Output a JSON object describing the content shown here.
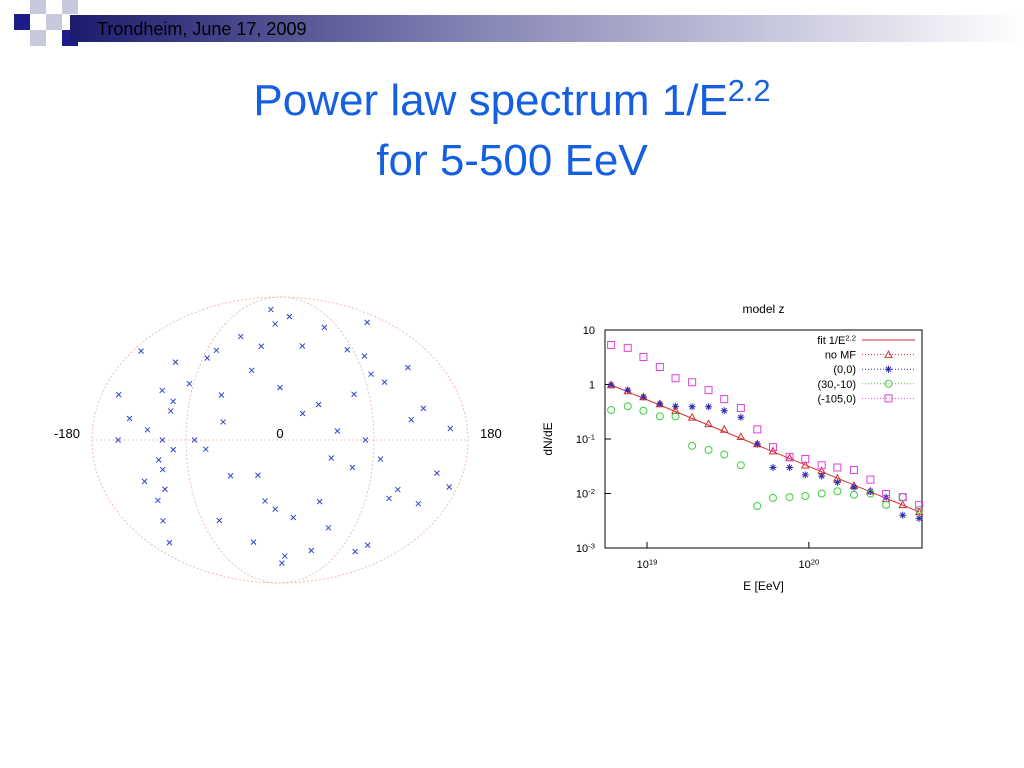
{
  "header": {
    "text": "Trondheim, June 17, 2009"
  },
  "title": {
    "line1": "Power law spectrum 1/E^2.2",
    "line2": "for  5-500 EeV"
  },
  "chart_data": [
    {
      "type": "scatter",
      "marker": "x",
      "color": "#3344cc",
      "xlim": [
        -180,
        180
      ],
      "ylim": [
        -90,
        90
      ],
      "xticks": [
        -180,
        0,
        180
      ],
      "x": [
        -120,
        -110,
        -100,
        -130,
        -115,
        -105,
        -95,
        -140,
        -90,
        -125,
        -108,
        -118,
        -135,
        -100,
        -112,
        -150,
        -160,
        -80,
        -70,
        -60,
        -50,
        -40,
        -30,
        -20,
        -10,
        0,
        10,
        20,
        30,
        40,
        50,
        60,
        70,
        80,
        90,
        100,
        110,
        120,
        130,
        140,
        150,
        160,
        -45,
        -25,
        15,
        35,
        55,
        75,
        95,
        115,
        135,
        -65,
        -85,
        -5,
        25,
        65,
        105,
        145,
        -155,
        -170,
        170,
        5,
        -35,
        45,
        85,
        125,
        -75,
        -55,
        -15,
        155
      ],
      "y": [
        5,
        -10,
        15,
        -20,
        25,
        0,
        -5,
        10,
        30,
        -30,
        -15,
        40,
        -40,
        20,
        -25,
        0,
        20,
        50,
        -45,
        60,
        10,
        -60,
        40,
        -20,
        70,
        30,
        -70,
        15,
        55,
        -35,
        5,
        -50,
        25,
        65,
        -10,
        45,
        -30,
        10,
        -55,
        35,
        -15,
        5,
        -20,
        55,
        -45,
        20,
        -65,
        0,
        35,
        -25,
        15,
        -5,
        45,
        -40,
        75,
        -15,
        30,
        -30,
        -50,
        40,
        -20,
        -75,
        80,
        -10,
        50,
        -60,
        0,
        25,
        -35,
        60
      ]
    },
    {
      "type": "loglog",
      "title": "model z",
      "xlabel": "E [EeV]",
      "ylabel": "dN/dE",
      "xscale": "log",
      "yscale": "log",
      "legend": "upper right",
      "xlim": [
        5.5e+18,
        5e+20
      ],
      "ylim": [
        0.001,
        10
      ],
      "xticks": [
        {
          "value": 1e+19,
          "label": "10^19"
        },
        {
          "value": 1e+20,
          "label": "10^20"
        }
      ],
      "yticks": [
        {
          "value": 0.001,
          "label": "10^-3"
        },
        {
          "value": 0.01,
          "label": "10^-2"
        },
        {
          "value": 0.1,
          "label": "10^-1"
        },
        1,
        10
      ],
      "series": [
        {
          "name": "fit 1/E^2.2",
          "color": "#d03030",
          "marker": "line",
          "x": [
            6e+18,
            4.8e+20
          ],
          "values": [
            0.98,
            0.0046
          ]
        },
        {
          "name": "no MF",
          "color": "#d03030",
          "marker": "triangle",
          "x": [
            6e+18,
            7.6e+18,
            9.5e+18,
            1.2e+19,
            1.5e+19,
            1.9e+19,
            2.4e+19,
            3e+19,
            3.8e+19,
            4.8e+19,
            6e+19,
            7.6e+19,
            9.5e+19,
            1.2e+20,
            1.5e+20,
            1.9e+20,
            2.4e+20,
            3e+20,
            3.8e+20,
            4.8e+20
          ],
          "values": [
            0.98,
            0.76,
            0.59,
            0.44,
            0.33,
            0.25,
            0.19,
            0.15,
            0.11,
            0.081,
            0.06,
            0.045,
            0.033,
            0.026,
            0.019,
            0.014,
            0.011,
            0.008,
            0.0062,
            0.0046
          ]
        },
        {
          "name": "(0,0)",
          "color": "#2b2bb0",
          "marker": "star",
          "x": [
            6e+18,
            7.6e+18,
            9.5e+18,
            1.2e+19,
            1.5e+19,
            1.9e+19,
            2.4e+19,
            3e+19,
            3.8e+19,
            4.8e+19,
            6e+19,
            7.6e+19,
            9.5e+19,
            1.2e+20,
            1.5e+20,
            1.9e+20,
            2.4e+20,
            3e+20,
            3.8e+20,
            4.8e+20
          ],
          "values": [
            0.98,
            0.79,
            0.59,
            0.44,
            0.4,
            0.39,
            0.39,
            0.33,
            0.25,
            0.081,
            0.03,
            0.03,
            0.022,
            0.021,
            0.016,
            0.013,
            0.011,
            0.0085,
            0.004,
            0.0035
          ]
        },
        {
          "name": "(30,-10)",
          "color": "#3ccf3c",
          "marker": "circle",
          "x": [
            6e+18,
            7.6e+18,
            9.5e+18,
            1.2e+19,
            1.5e+19,
            1.9e+19,
            2.4e+19,
            3e+19,
            3.8e+19,
            4.8e+19,
            6e+19,
            7.6e+19,
            9.5e+19,
            1.2e+20,
            1.5e+20,
            1.9e+20,
            2.4e+20,
            3e+20,
            3.8e+20,
            4.8e+20
          ],
          "values": [
            0.34,
            0.4,
            0.33,
            0.26,
            0.26,
            0.075,
            0.063,
            0.052,
            0.033,
            0.0059,
            0.0083,
            0.0086,
            0.009,
            0.01,
            0.011,
            0.0095,
            0.01,
            0.0062,
            0.0086,
            0.005
          ]
        },
        {
          "name": "(-105,0)",
          "color": "#e040e0",
          "marker": "square",
          "x": [
            6e+18,
            7.6e+18,
            9.5e+18,
            1.2e+19,
            1.5e+19,
            1.9e+19,
            2.4e+19,
            3e+19,
            3.8e+19,
            4.8e+19,
            6e+19,
            7.6e+19,
            9.5e+19,
            1.2e+20,
            1.5e+20,
            1.9e+20,
            2.4e+20,
            3e+20,
            3.8e+20,
            4.8e+20
          ],
          "values": [
            5.3,
            4.7,
            3.2,
            2.1,
            1.3,
            1.1,
            0.79,
            0.54,
            0.37,
            0.15,
            0.071,
            0.047,
            0.043,
            0.033,
            0.03,
            0.027,
            0.018,
            0.0098,
            0.0086,
            0.0062
          ]
        }
      ]
    }
  ]
}
